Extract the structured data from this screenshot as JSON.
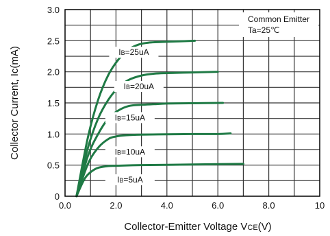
{
  "chart_data": {
    "type": "line",
    "xlabel": "Collector-Emitter Voltage V",
    "xlabel_sub": "CE",
    "xlabel_unit": "(V)",
    "ylabel": "Collector Current, Ic(mA)",
    "xlim": [
      0,
      10
    ],
    "ylim": [
      0,
      3.0
    ],
    "x_ticks": [
      "0.0",
      "2.0",
      "4.0",
      "6.0",
      "8.0",
      "10"
    ],
    "y_ticks": [
      "0",
      "0.5",
      "1.0",
      "1.5",
      "2.0",
      "2.5",
      "3.0"
    ],
    "grid": true,
    "line_color": "#1f7a45",
    "annotation": [
      "Common Emitter",
      "Ta=25℃"
    ],
    "series": [
      {
        "label_main": "I",
        "label_sub": "B",
        "label_rest": "=5uA",
        "label_pos": [
          2.55,
          0.22
        ],
        "x": [
          0.45,
          0.8,
          1.2,
          1.6,
          2.0,
          3.0,
          4.0,
          5.0,
          6.0,
          7.0
        ],
        "y": [
          0.0,
          0.3,
          0.44,
          0.48,
          0.49,
          0.5,
          0.505,
          0.51,
          0.515,
          0.52
        ]
      },
      {
        "label_main": "I",
        "label_sub": "B",
        "label_rest": "=10uA",
        "label_pos": [
          2.55,
          0.67
        ],
        "x": [
          0.45,
          0.9,
          1.3,
          1.7,
          2.0,
          2.4,
          3.0,
          4.0,
          5.0,
          6.0,
          6.5
        ],
        "y": [
          0.0,
          0.52,
          0.78,
          0.92,
          0.96,
          0.98,
          0.99,
          0.995,
          1.0,
          1.0,
          1.01
        ]
      },
      {
        "label_main": "I",
        "label_sub": "B",
        "label_rest": "=15uA",
        "label_pos": [
          2.55,
          1.22
        ],
        "x": [
          0.45,
          0.9,
          1.3,
          1.7,
          2.1,
          2.5,
          3.0,
          3.5,
          4.0,
          5.0,
          6.2
        ],
        "y": [
          0.0,
          0.65,
          1.0,
          1.25,
          1.38,
          1.45,
          1.47,
          1.48,
          1.49,
          1.495,
          1.5
        ]
      },
      {
        "label_main": "I",
        "label_sub": "B",
        "label_rest": "=20uA",
        "label_pos": [
          2.9,
          1.72
        ],
        "x": [
          0.45,
          0.9,
          1.3,
          1.7,
          2.1,
          2.5,
          3.0,
          3.5,
          4.0,
          5.0,
          6.0
        ],
        "y": [
          0.0,
          0.78,
          1.25,
          1.55,
          1.75,
          1.87,
          1.94,
          1.97,
          1.98,
          1.99,
          2.0
        ]
      },
      {
        "label_main": "I",
        "label_sub": "B",
        "label_rest": "=25uA",
        "label_pos": [
          2.7,
          2.27
        ],
        "x": [
          0.45,
          0.9,
          1.3,
          1.7,
          2.1,
          2.5,
          2.9,
          3.3,
          3.8,
          4.5,
          5.1
        ],
        "y": [
          0.0,
          0.95,
          1.55,
          1.95,
          2.2,
          2.36,
          2.44,
          2.47,
          2.48,
          2.49,
          2.5
        ]
      }
    ]
  }
}
